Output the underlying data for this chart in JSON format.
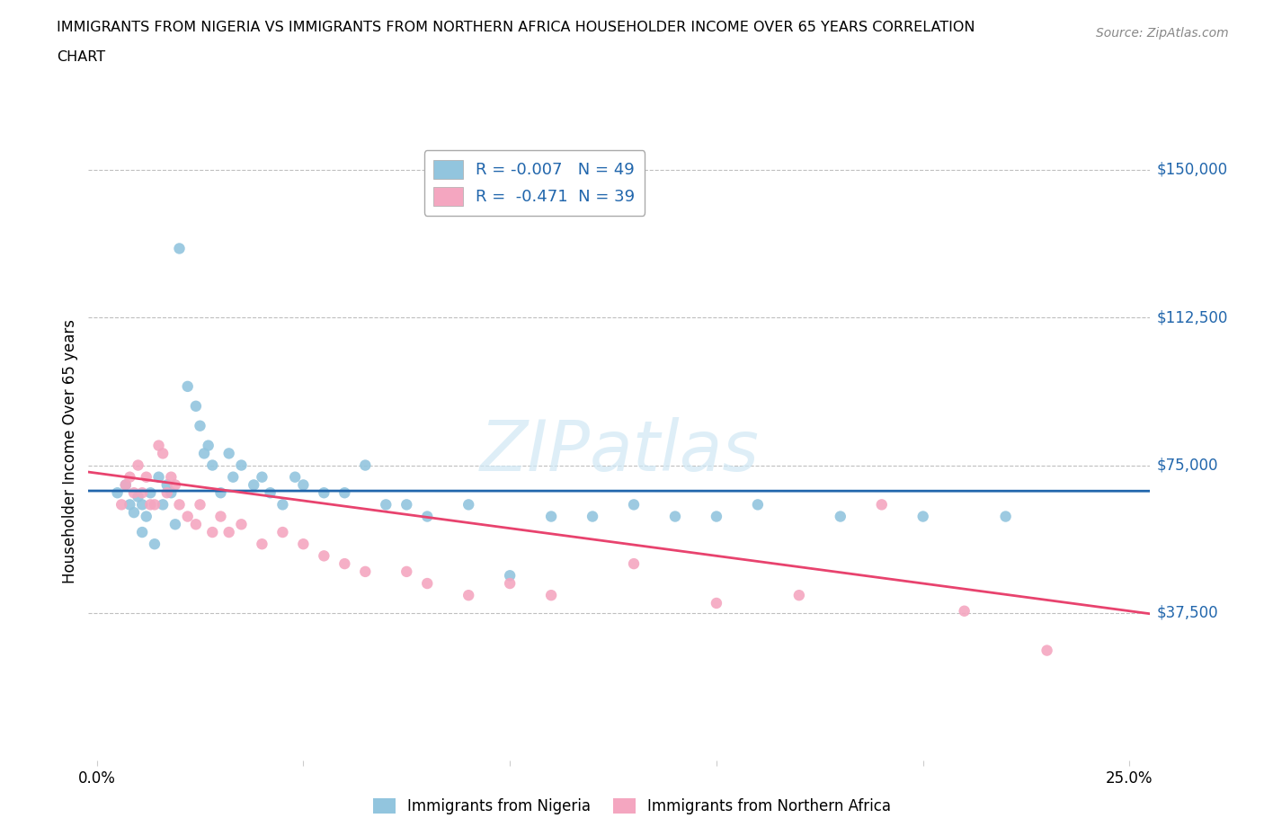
{
  "title_line1": "IMMIGRANTS FROM NIGERIA VS IMMIGRANTS FROM NORTHERN AFRICA HOUSEHOLDER INCOME OVER 65 YEARS CORRELATION",
  "title_line2": "CHART",
  "source": "Source: ZipAtlas.com",
  "watermark": "ZIPatlas",
  "nigeria_R": -0.007,
  "nigeria_N": 49,
  "n_africa_R": -0.471,
  "n_africa_N": 39,
  "xlim": [
    -0.002,
    0.255
  ],
  "ylim": [
    0,
    157000
  ],
  "yticks": [
    37500,
    75000,
    112500,
    150000
  ],
  "ytick_labels": [
    "$37,500",
    "$75,000",
    "$112,500",
    "$150,000"
  ],
  "xticks": [
    0.0,
    0.05,
    0.1,
    0.15,
    0.2,
    0.25
  ],
  "xtick_labels": [
    "0.0%",
    "",
    "",
    "",
    "",
    "25.0%"
  ],
  "ylabel": "Householder Income Over 65 years",
  "nigeria_color": "#92c5de",
  "n_africa_color": "#f4a6c0",
  "nigeria_line_color": "#2166ac",
  "n_africa_line_color": "#e8436e",
  "grid_color": "#b0b0b0",
  "background_color": "#ffffff",
  "nigeria_x": [
    0.005,
    0.007,
    0.008,
    0.009,
    0.01,
    0.011,
    0.011,
    0.012,
    0.013,
    0.014,
    0.015,
    0.016,
    0.017,
    0.018,
    0.019,
    0.02,
    0.022,
    0.024,
    0.025,
    0.026,
    0.027,
    0.028,
    0.03,
    0.032,
    0.033,
    0.035,
    0.038,
    0.04,
    0.042,
    0.045,
    0.048,
    0.05,
    0.055,
    0.06,
    0.065,
    0.07,
    0.075,
    0.08,
    0.09,
    0.1,
    0.11,
    0.12,
    0.13,
    0.14,
    0.15,
    0.16,
    0.18,
    0.2,
    0.22
  ],
  "nigeria_y": [
    68000,
    70000,
    65000,
    63000,
    67000,
    65000,
    58000,
    62000,
    68000,
    55000,
    72000,
    65000,
    70000,
    68000,
    60000,
    130000,
    95000,
    90000,
    85000,
    78000,
    80000,
    75000,
    68000,
    78000,
    72000,
    75000,
    70000,
    72000,
    68000,
    65000,
    72000,
    70000,
    68000,
    68000,
    75000,
    65000,
    65000,
    62000,
    65000,
    47000,
    62000,
    62000,
    65000,
    62000,
    62000,
    65000,
    62000,
    62000,
    62000
  ],
  "n_africa_x": [
    0.006,
    0.007,
    0.008,
    0.009,
    0.01,
    0.011,
    0.012,
    0.013,
    0.014,
    0.015,
    0.016,
    0.017,
    0.018,
    0.019,
    0.02,
    0.022,
    0.024,
    0.025,
    0.028,
    0.03,
    0.032,
    0.035,
    0.04,
    0.045,
    0.05,
    0.055,
    0.06,
    0.065,
    0.075,
    0.08,
    0.09,
    0.1,
    0.11,
    0.13,
    0.15,
    0.17,
    0.19,
    0.21,
    0.23
  ],
  "n_africa_y": [
    65000,
    70000,
    72000,
    68000,
    75000,
    68000,
    72000,
    65000,
    65000,
    80000,
    78000,
    68000,
    72000,
    70000,
    65000,
    62000,
    60000,
    65000,
    58000,
    62000,
    58000,
    60000,
    55000,
    58000,
    55000,
    52000,
    50000,
    48000,
    48000,
    45000,
    42000,
    45000,
    42000,
    50000,
    40000,
    42000,
    65000,
    38000,
    28000
  ]
}
